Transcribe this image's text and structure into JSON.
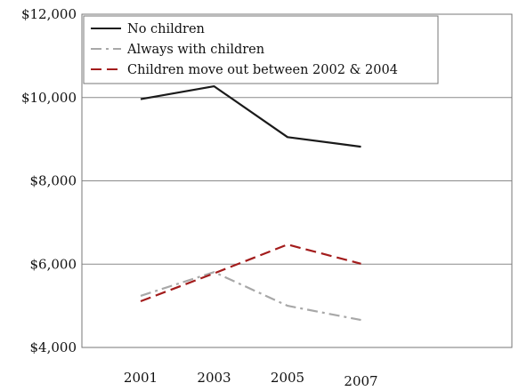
{
  "chart_data": {
    "type": "line",
    "x": [
      2001,
      2003,
      2005,
      2007
    ],
    "xticks": [
      "2001",
      "2003",
      "2005",
      "2007"
    ],
    "yticks": [
      "$4,000",
      "$6,000",
      "$8,000",
      "$10,000",
      "$12,000"
    ],
    "ylim": [
      4000,
      12000
    ],
    "grid": true,
    "legend_placement": "top-left",
    "series": [
      {
        "name": "No children",
        "values": [
          9960,
          10270,
          9050,
          8820
        ],
        "color": "#1a1a1a",
        "dash": "solid"
      },
      {
        "name": "Always with children",
        "values": [
          5240,
          5810,
          5000,
          4660
        ],
        "color": "#a8a8a8",
        "dash": "dashdot"
      },
      {
        "name": "Children move out between 2002 & 2004",
        "values": [
          5110,
          5780,
          6470,
          6010
        ],
        "color": "#a31c1c",
        "dash": "dashed"
      }
    ]
  }
}
